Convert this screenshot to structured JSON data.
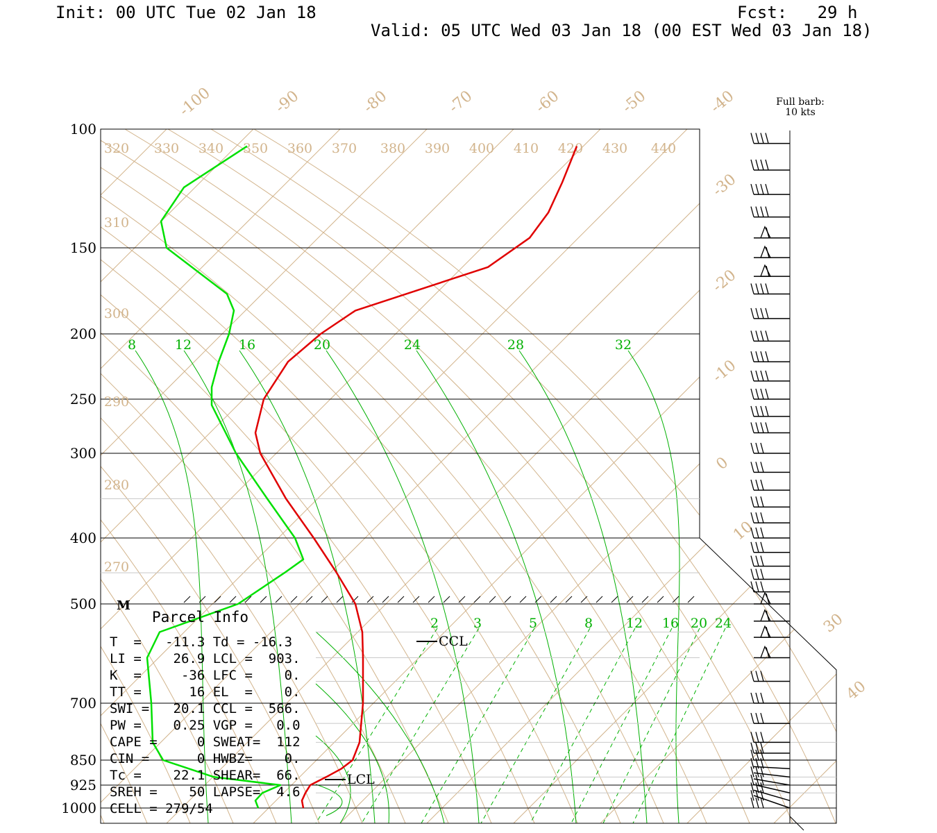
{
  "header": {
    "init": "Init: 00 UTC Tue 02 Jan 18",
    "fcst": "Fcst:   29 h",
    "valid": "Valid: 05 UTC Wed 03 Jan 18 (00 EST Wed 03 Jan 18)"
  },
  "barb_legend": [
    "Full barb:",
    "10 kts"
  ],
  "chart_data": {
    "type": "line",
    "subtype": "skew-t log-p sounding",
    "y_axis": {
      "quantity": "pressure (hPa)",
      "scale": "log",
      "range": [
        1000,
        100
      ],
      "tick_labels": [
        "100",
        "150",
        "200",
        "250",
        "300",
        "400",
        "500",
        "700",
        "850",
        "925",
        "1000"
      ],
      "ticks": [
        100,
        150,
        200,
        250,
        300,
        400,
        500,
        700,
        850,
        925,
        1000
      ]
    },
    "isotherm_labels": [
      "-100",
      "-90",
      "-80",
      "-70",
      "-60",
      "-50",
      "-40",
      "-30",
      "-20",
      "-10",
      "0",
      "10",
      "30",
      "40"
    ],
    "theta_labels": [
      "320",
      "330",
      "340",
      "350",
      "360",
      "370",
      "380",
      "390",
      "400",
      "410",
      "420",
      "430",
      "440",
      "310",
      "300",
      "290",
      "280",
      "270"
    ],
    "theta_e_labels": [
      "8",
      "12",
      "16",
      "20",
      "24",
      "28",
      "32"
    ],
    "mixing_ratio_labels": [
      "2",
      "3",
      "5",
      "8",
      "12",
      "16",
      "20",
      "24"
    ],
    "level_markers": {
      "m": "M",
      "ccl": "CCL",
      "lcl": "LCL"
    },
    "series": [
      {
        "color": "#e00000",
        "points": [
          [
            1000,
            437
          ],
          [
            975,
            435
          ],
          [
            950,
            440
          ],
          [
            925,
            447
          ],
          [
            900,
            470
          ],
          [
            875,
            492
          ],
          [
            850,
            508
          ],
          [
            800,
            518
          ],
          [
            700,
            523
          ],
          [
            600,
            523
          ],
          [
            550,
            522
          ],
          [
            500,
            512
          ],
          [
            450,
            485
          ],
          [
            400,
            452
          ],
          [
            350,
            412
          ],
          [
            300,
            375
          ],
          [
            280,
            368
          ],
          [
            250,
            380
          ],
          [
            220,
            415
          ],
          [
            200,
            462
          ],
          [
            185,
            512
          ],
          [
            160,
            703
          ],
          [
            145,
            763
          ],
          [
            133,
            790
          ],
          [
            120,
            810
          ],
          [
            106,
            831
          ]
        ]
      },
      {
        "color": "#00e000",
        "points": [
          [
            1000,
            372
          ],
          [
            975,
            368
          ],
          [
            950,
            378
          ],
          [
            925,
            404
          ],
          [
            900,
            308
          ],
          [
            850,
            235
          ],
          [
            800,
            220
          ],
          [
            700,
            218
          ],
          [
            600,
            212
          ],
          [
            550,
            230
          ],
          [
            500,
            343
          ],
          [
            450,
            410
          ],
          [
            430,
            437
          ],
          [
            400,
            425
          ],
          [
            350,
            385
          ],
          [
            300,
            340
          ],
          [
            255,
            305
          ],
          [
            240,
            305
          ],
          [
            220,
            315
          ],
          [
            200,
            330
          ],
          [
            185,
            337
          ],
          [
            175,
            327
          ],
          [
            150,
            240
          ],
          [
            137,
            232
          ],
          [
            122,
            265
          ],
          [
            106,
            356
          ]
        ]
      }
    ],
    "wind_barbs_pressure": [
      105,
      115,
      125,
      135,
      145,
      155,
      165,
      175,
      190,
      205,
      220,
      235,
      250,
      265,
      280,
      300,
      320,
      340,
      360,
      380,
      400,
      420,
      440,
      460,
      480,
      500,
      530,
      560,
      600,
      650,
      700,
      750,
      800,
      830,
      850,
      875,
      900,
      925,
      950,
      975,
      1000
    ]
  },
  "parcel_info": {
    "title": "Parcel Info",
    "lines": [
      "T  =   -11.3 Td = -16.3",
      "LI =    26.9 LCL =  903.",
      "K  =     -36 LFC =    0.",
      "TT =      16 EL  =    0.",
      "SWI =   20.1 CCL =  566.",
      "PW =    0.25 VGP =   0.0",
      "CAPE =     0 SWEAT=  112",
      "CIN =      0 HWBZ=    0.",
      "Tc =    22.1 SHEAR=  66.",
      "SREH =    50 LAPSE=  4.6",
      "CELL = 279/54"
    ]
  },
  "colors": {
    "temperature": "#e00000",
    "dewpoint": "#00e000",
    "isotherm": "#d2b48c",
    "moist_adiabat": "#00b000",
    "isobar": "#000000"
  }
}
